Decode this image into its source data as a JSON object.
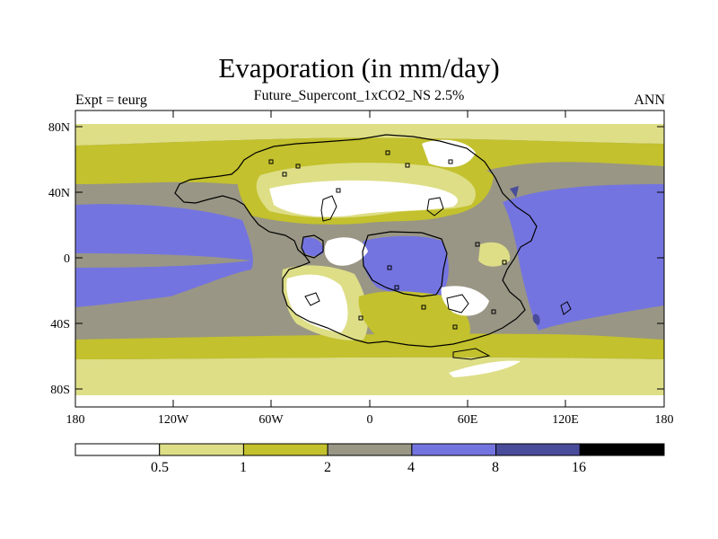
{
  "title": "Evaporation (in mm/day)",
  "subtitle": "Future_Supercont_1xCO2_NS 2.5%",
  "left_label": "Expt = teurg",
  "right_label": "ANN",
  "lat_labels": [
    "80N",
    "40N",
    "0",
    "40S",
    "80S"
  ],
  "lon_labels": [
    "180",
    "120W",
    "60W",
    "0",
    "60E",
    "120E",
    "180"
  ],
  "colorbar": {
    "labels": [
      "0.5",
      "1",
      "2",
      "4",
      "8",
      "16"
    ],
    "colors": [
      "#ffffff",
      "#dede87",
      "#c3c12d",
      "#999685",
      "#7474e0",
      "#494b9b",
      "#000000"
    ]
  },
  "colors": {
    "outline": "#000000"
  }
}
